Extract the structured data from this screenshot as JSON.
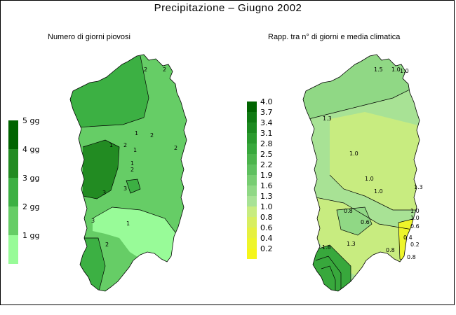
{
  "title": "Precipitazione  –  Giugno 2002",
  "left_map": {
    "subtitle": "Numero di giorni piovosi",
    "legend": {
      "labels": [
        "5 gg",
        "4 gg",
        "3 gg",
        "2 gg",
        "1 gg"
      ],
      "colors": [
        "#006400",
        "#228b22",
        "#3cb043",
        "#66cd66",
        "#98fb98"
      ]
    },
    "contour_labels": [
      "2",
      "2",
      "2",
      "2",
      "2",
      "1",
      "1",
      "1",
      "1",
      "1",
      "3",
      "3",
      "3",
      "2",
      "2"
    ]
  },
  "right_map": {
    "subtitle": "Rapp. tra n° di giorni e media climatica",
    "legend": {
      "labels": [
        "4.0",
        "3.7",
        "3.4",
        "3.1",
        "2.8",
        "2.5",
        "2.2",
        "1.9",
        "1.6",
        "1.3",
        "1.0",
        "0.8",
        "0.6",
        "0.4",
        "0.2"
      ],
      "colors": [
        "#006400",
        "#0f7a12",
        "#1c8a20",
        "#2a9a2e",
        "#38a83c",
        "#4cb44c",
        "#5fc05f",
        "#78cd72",
        "#90d885",
        "#a8e295",
        "#c8ec80",
        "#d8ee60",
        "#e6f040",
        "#eef52a",
        "#f5f51a"
      ]
    },
    "contour_labels": [
      "1.5",
      "1.0",
      "1.0",
      "1.3",
      "1.0",
      "1.0",
      "1.0",
      "0.8",
      "0.6",
      "1.3",
      "0.6",
      "1.0",
      "1.0",
      "0.4",
      "0.2",
      "1.8",
      "1.3",
      "0.8",
      "0.8"
    ]
  }
}
